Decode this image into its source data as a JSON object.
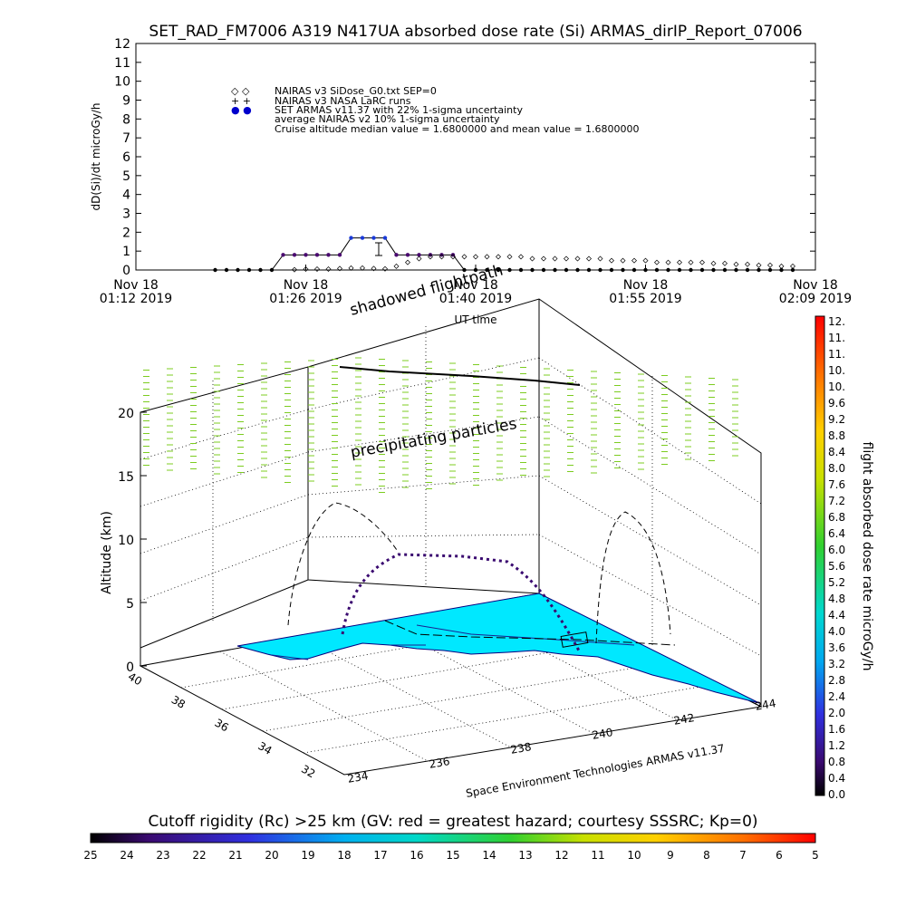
{
  "figure": {
    "title": "SET_RAD_FM7006   A319 N417UA absorbed dose rate (Si) ARMAS_dirIP_Report_07006",
    "credit": "Space Environment Technologies ARMAS v11.37",
    "annotation_shadowed": "shadowed flightpath",
    "annotation_precipitating": "precipitating particles"
  },
  "chart_data": [
    {
      "type": "line",
      "title": "SET_RAD_FM7006   A319 N417UA absorbed dose rate (Si) ARMAS_dirIP_Report_07006",
      "ylabel": "dD(Si)/dt microGy/h",
      "xlabel": "UT time",
      "ylim": [
        0,
        12
      ],
      "yticks": [
        "0",
        "1",
        "2",
        "3",
        "4",
        "5",
        "6",
        "7",
        "8",
        "9",
        "10",
        "11",
        "12"
      ],
      "xticks": [
        {
          "top": "Nov 18",
          "bottom": "01:12 2019"
        },
        {
          "top": "Nov 18",
          "bottom": "01:26 2019"
        },
        {
          "top": "Nov 18",
          "bottom": "01:40 2019"
        },
        {
          "top": "Nov 18",
          "bottom": "01:55 2019"
        },
        {
          "top": "Nov 18",
          "bottom": "02:09 2019"
        }
      ],
      "legend": {
        "placement": "top-left",
        "entries": [
          {
            "symbol": "◇ ◇",
            "text": "NAIRAS v3 SiDose_G0.txt SEP=0"
          },
          {
            "symbol": "+ +",
            "text": "NAIRAS v3 NASA LaRC runs"
          },
          {
            "symbol": "● ●",
            "text": "SET ARMAS v11.37 with 22% 1-sigma uncertainty"
          },
          {
            "symbol": "",
            "text": "average NAIRAS v2 10% 1-sigma uncertainty"
          },
          {
            "symbol": "",
            "text": "Cruise altitude median value = 1.6800000 and mean value = 1.6800000"
          }
        ]
      },
      "series": [
        {
          "name": "SET ARMAS v11.37 with 22% 1-sigma uncertainty",
          "color": "#0000cc",
          "x_minutes": [
            14,
            16,
            18,
            20,
            22,
            24,
            26,
            28,
            30,
            32,
            34,
            36,
            38,
            40,
            42,
            44,
            46,
            48,
            50,
            52,
            54,
            56,
            58,
            60,
            62,
            64,
            66,
            68,
            70,
            72,
            74,
            76,
            78,
            80,
            82,
            84,
            86,
            88,
            90,
            92,
            94,
            96,
            98,
            100,
            102,
            104,
            106,
            108,
            110,
            112,
            114,
            116
          ],
          "values": [
            0,
            0,
            0,
            0,
            0,
            0,
            0.8,
            0.8,
            0.8,
            0.8,
            0.8,
            0.8,
            1.7,
            1.7,
            1.7,
            1.7,
            0.8,
            0.8,
            0.8,
            0.8,
            0.8,
            0.8,
            0,
            0,
            0,
            0,
            0,
            0,
            0,
            0,
            0,
            0,
            0,
            0,
            0,
            0,
            0,
            0,
            0,
            0,
            0,
            0,
            0,
            0,
            0,
            0,
            0,
            0,
            0,
            0,
            0,
            0
          ]
        },
        {
          "name": "NAIRAS v3 SiDose_G0.txt SEP=0",
          "color": "#000000",
          "x_minutes": [
            28,
            30,
            32,
            34,
            36,
            38,
            40,
            42,
            44,
            46,
            48,
            50,
            52,
            54,
            56,
            58,
            60,
            62,
            64,
            66,
            68,
            70,
            72,
            74,
            76,
            78,
            80,
            82,
            84,
            86,
            88,
            90,
            92,
            94,
            96,
            98,
            100,
            102,
            104,
            106,
            108,
            110,
            112,
            114,
            116
          ],
          "values": [
            0.02,
            0.05,
            0.05,
            0.05,
            0.08,
            0.1,
            0.1,
            0.08,
            0.06,
            0.2,
            0.4,
            0.6,
            0.7,
            0.7,
            0.7,
            0.7,
            0.7,
            0.7,
            0.7,
            0.7,
            0.7,
            0.6,
            0.6,
            0.6,
            0.6,
            0.6,
            0.6,
            0.6,
            0.5,
            0.5,
            0.5,
            0.5,
            0.4,
            0.4,
            0.4,
            0.4,
            0.4,
            0.35,
            0.35,
            0.3,
            0.3,
            0.25,
            0.25,
            0.2,
            0.2
          ]
        }
      ]
    },
    {
      "type": "scatter",
      "ylabel": "Altitude (km)",
      "zticks": [
        "0",
        "5",
        "10",
        "15",
        "20"
      ],
      "longitude_ticks": [
        "234",
        "236",
        "238",
        "240",
        "242",
        "244"
      ],
      "latitude_ticks": [
        "32",
        "34",
        "36",
        "38",
        "40"
      ],
      "colorbar": {
        "label": "flight absorbed dose rate microGy/h",
        "ticks": [
          "0.0",
          "0.4",
          "0.8",
          "1.2",
          "1.6",
          "2.0",
          "2.4",
          "2.8",
          "3.2",
          "3.6",
          "4.0",
          "4.4",
          "4.8",
          "5.2",
          "5.6",
          "6.0",
          "6.4",
          "6.8",
          "7.2",
          "7.6",
          "8.0",
          "8.4",
          "8.8",
          "9.2",
          "9.6",
          "10.",
          "10.",
          "11.",
          "11.",
          "12."
        ]
      }
    },
    {
      "type": "heatmap",
      "title": "Cutoff rigidity (Rc) >25 km (GV: red = greatest hazard; courtesy SSSRC; Kp=0)",
      "colorbar_ticks": [
        "25",
        "24",
        "23",
        "22",
        "21",
        "20",
        "19",
        "18",
        "17",
        "16",
        "15",
        "14",
        "13",
        "12",
        "11",
        "10",
        "9",
        "8",
        "7",
        "6",
        "5"
      ]
    }
  ]
}
